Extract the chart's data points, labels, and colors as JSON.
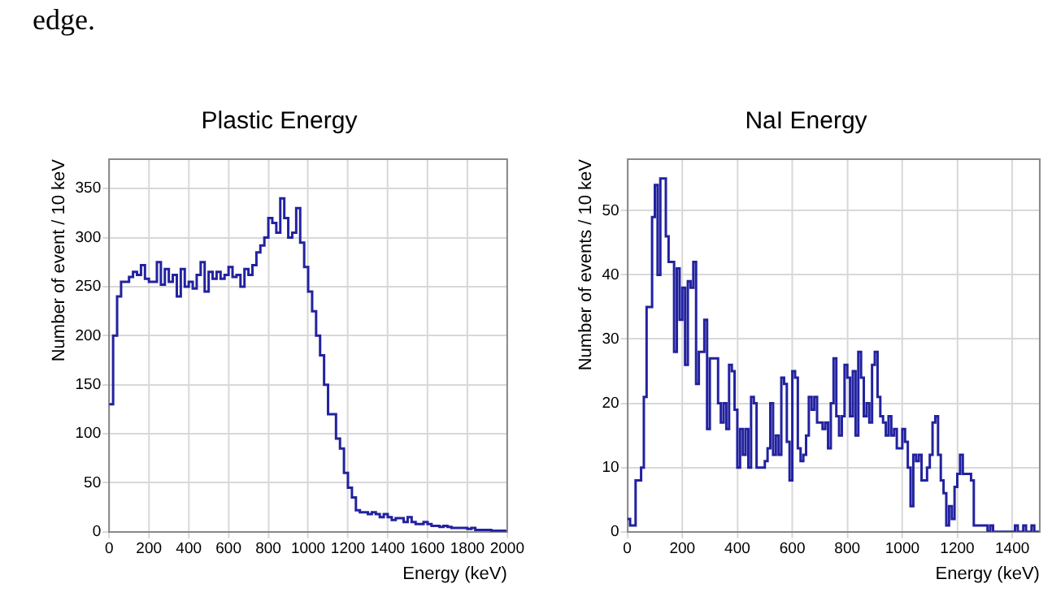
{
  "chart_data": [
    {
      "type": "histogram",
      "title": "Plastic Energy",
      "xlabel": "Energy (keV)",
      "ylabel": "Number of event / 10 keV",
      "annotations": [
        "edge."
      ],
      "bins": [
        0,
        20,
        40,
        60,
        80,
        100,
        120,
        140,
        160,
        180,
        200,
        220,
        240,
        260,
        280,
        300,
        320,
        340,
        360,
        380,
        400,
        420,
        440,
        460,
        480,
        500,
        520,
        540,
        560,
        580,
        600,
        620,
        640,
        660,
        680,
        700,
        720,
        740,
        760,
        780,
        800,
        820,
        840,
        860,
        880,
        900,
        920,
        940,
        960,
        980,
        1000,
        1020,
        1040,
        1060,
        1080,
        1100,
        1120,
        1140,
        1160,
        1180,
        1200,
        1220,
        1240,
        1260,
        1280,
        1300,
        1320,
        1340,
        1360,
        1380,
        1400,
        1420,
        1440,
        1460,
        1480,
        1500,
        1520,
        1540,
        1560,
        1580,
        1600,
        1620,
        1640,
        1660,
        1680,
        1700,
        1720,
        1740,
        1760,
        1780,
        1800,
        1820,
        1840,
        1860,
        1880,
        1900,
        1920,
        1940,
        1960,
        1980,
        2000
      ],
      "values": [
        130,
        200,
        240,
        255,
        255,
        260,
        265,
        262,
        272,
        258,
        255,
        255,
        275,
        252,
        268,
        255,
        262,
        240,
        268,
        250,
        255,
        248,
        262,
        275,
        245,
        265,
        258,
        265,
        258,
        262,
        270,
        260,
        262,
        250,
        268,
        262,
        272,
        285,
        292,
        300,
        320,
        315,
        305,
        340,
        320,
        300,
        305,
        330,
        295,
        270,
        245,
        225,
        200,
        180,
        150,
        120,
        120,
        95,
        85,
        60,
        45,
        35,
        22,
        20,
        20,
        18,
        20,
        18,
        15,
        18,
        15,
        12,
        14,
        14,
        10,
        15,
        10,
        8,
        8,
        10,
        8,
        6,
        6,
        5,
        6,
        5,
        4,
        4,
        4,
        4,
        3,
        4,
        2,
        2,
        2,
        2,
        1,
        1,
        1,
        1
      ],
      "color": "#2222a0",
      "xlim": [
        0,
        2000
      ],
      "ylim": [
        0,
        380
      ],
      "xticks": [
        0,
        200,
        400,
        600,
        800,
        1000,
        1200,
        1400,
        1600,
        1800,
        2000
      ],
      "yticks": [
        0,
        50,
        100,
        150,
        200,
        250,
        300,
        350
      ],
      "grid": true
    },
    {
      "type": "histogram",
      "title": "NaI Energy",
      "xlabel": "Energy (keV)",
      "ylabel": "Number of events / 10 keV",
      "bins": [
        0,
        10,
        20,
        30,
        40,
        50,
        60,
        70,
        80,
        90,
        100,
        110,
        120,
        130,
        140,
        150,
        160,
        170,
        180,
        190,
        200,
        210,
        220,
        230,
        240,
        250,
        260,
        270,
        280,
        290,
        300,
        310,
        320,
        330,
        340,
        350,
        360,
        370,
        380,
        390,
        400,
        410,
        420,
        430,
        440,
        450,
        460,
        470,
        480,
        490,
        500,
        510,
        520,
        530,
        540,
        550,
        560,
        570,
        580,
        590,
        600,
        610,
        620,
        630,
        640,
        650,
        660,
        670,
        680,
        690,
        700,
        710,
        720,
        730,
        740,
        750,
        760,
        770,
        780,
        790,
        800,
        810,
        820,
        830,
        840,
        850,
        860,
        870,
        880,
        890,
        900,
        910,
        920,
        930,
        940,
        950,
        960,
        970,
        980,
        990,
        1000,
        1010,
        1020,
        1030,
        1040,
        1050,
        1060,
        1070,
        1080,
        1090,
        1100,
        1110,
        1120,
        1130,
        1140,
        1150,
        1160,
        1170,
        1180,
        1190,
        1200,
        1210,
        1220,
        1230,
        1240,
        1250,
        1260,
        1270,
        1280,
        1290,
        1300,
        1310,
        1320,
        1330,
        1340,
        1350,
        1360,
        1370,
        1380,
        1390,
        1400,
        1410,
        1420,
        1430,
        1440,
        1450,
        1460,
        1470,
        1480,
        1490,
        1500
      ],
      "values": [
        2,
        1,
        1,
        8,
        8,
        10,
        21,
        35,
        35,
        49,
        54,
        40,
        55,
        55,
        46,
        42,
        42,
        28,
        41,
        33,
        38,
        26,
        39,
        38,
        42,
        23,
        28,
        28,
        33,
        16,
        27,
        27,
        27,
        20,
        17,
        20,
        16,
        26,
        25,
        19,
        10,
        16,
        12,
        16,
        10,
        21,
        20,
        10,
        10,
        10,
        11,
        13,
        20,
        12,
        15,
        12,
        24,
        23,
        14,
        8,
        25,
        24,
        13,
        11,
        12,
        15,
        21,
        19,
        21,
        17,
        17,
        16,
        17,
        13,
        20,
        27,
        18,
        15,
        18,
        26,
        24,
        18,
        25,
        15,
        28,
        24,
        18,
        20,
        17,
        26,
        28,
        21,
        18,
        17,
        15,
        18,
        15,
        16,
        13,
        13,
        16,
        14,
        10,
        4,
        12,
        11,
        12,
        8,
        8,
        10,
        12,
        17,
        18,
        12,
        8,
        6,
        1,
        4,
        2,
        7,
        9,
        12,
        9,
        9,
        9,
        8,
        1,
        1,
        1,
        1,
        1,
        0,
        1,
        0,
        0,
        0,
        0,
        0,
        0,
        0,
        0,
        1,
        0,
        0,
        1,
        0,
        0,
        1,
        0,
        0
      ],
      "color": "#2222a0",
      "xlim": [
        0,
        1500
      ],
      "ylim": [
        0,
        58
      ],
      "xticks": [
        0,
        200,
        400,
        600,
        800,
        1000,
        1200,
        1400
      ],
      "yticks": [
        0,
        10,
        20,
        30,
        40,
        50
      ],
      "grid": true
    }
  ]
}
